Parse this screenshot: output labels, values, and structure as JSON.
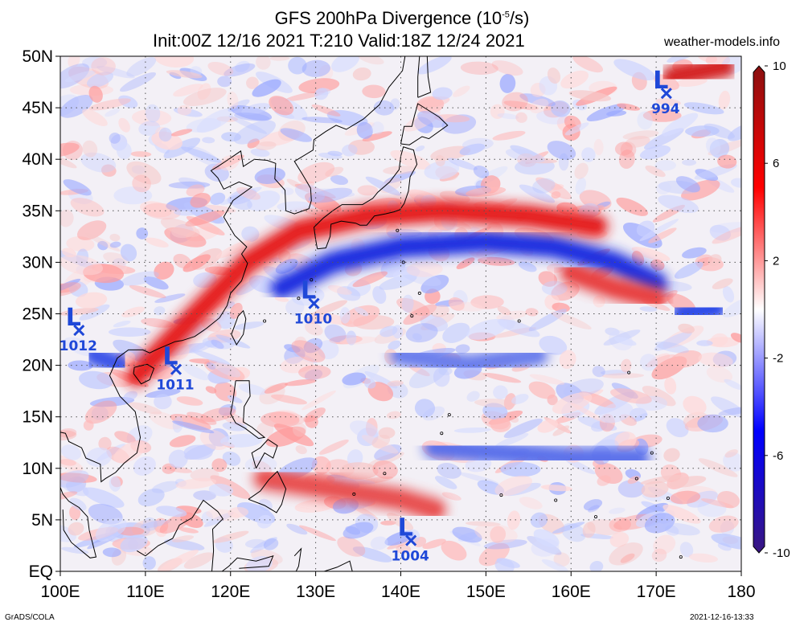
{
  "header": {
    "title_main": "GFS 200hPa Divergence (10",
    "title_exp": "-5",
    "title_unit": "/s)",
    "title_line2": "Init:00Z 12/16 2021 T:210 Valid:18Z 12/24 2021",
    "site": "weather-models.info"
  },
  "footer": {
    "software": "GrADS/COLA",
    "timestamp": "2021-12-16-13:33"
  },
  "map": {
    "lon_range": [
      100,
      180
    ],
    "lat_range": [
      0,
      50
    ],
    "lat_ticks": [
      {
        "v": 50,
        "label": "50N"
      },
      {
        "v": 45,
        "label": "45N"
      },
      {
        "v": 40,
        "label": "40N"
      },
      {
        "v": 35,
        "label": "35N"
      },
      {
        "v": 30,
        "label": "30N"
      },
      {
        "v": 25,
        "label": "25N"
      },
      {
        "v": 20,
        "label": "20N"
      },
      {
        "v": 15,
        "label": "15N"
      },
      {
        "v": 10,
        "label": "10N"
      },
      {
        "v": 5,
        "label": "5N"
      },
      {
        "v": 0,
        "label": "EQ"
      }
    ],
    "lon_ticks": [
      {
        "v": 100,
        "label": "100E"
      },
      {
        "v": 110,
        "label": "110E"
      },
      {
        "v": 120,
        "label": "120E"
      },
      {
        "v": 130,
        "label": "130E"
      },
      {
        "v": 140,
        "label": "140E"
      },
      {
        "v": 150,
        "label": "150E"
      },
      {
        "v": 160,
        "label": "160E"
      },
      {
        "v": 170,
        "label": "170E"
      },
      {
        "v": 180,
        "label": "180"
      }
    ]
  },
  "lows": [
    {
      "lon": 102.2,
      "lat": 23.4,
      "pressure": "1012"
    },
    {
      "lon": 113.6,
      "lat": 19.6,
      "pressure": "1011"
    },
    {
      "lon": 129.8,
      "lat": 26.0,
      "pressure": "1010"
    },
    {
      "lon": 141.2,
      "lat": 3.0,
      "pressure": "1004"
    },
    {
      "lon": 171.2,
      "lat": 46.4,
      "pressure": "994"
    }
  ],
  "low_symbol": "L",
  "colorbar": {
    "range": [
      -10,
      10
    ],
    "ticks": [
      {
        "v": 10,
        "label": "10"
      },
      {
        "v": 6,
        "label": "6"
      },
      {
        "v": 2,
        "label": "2"
      },
      {
        "v": -2,
        "label": "-2"
      },
      {
        "v": -6,
        "label": "-6"
      },
      {
        "v": -10,
        "label": "-10"
      }
    ],
    "colors": [
      "#8a1010",
      "#ff0000",
      "#ffffff",
      "#0000ff",
      "#3a1780"
    ]
  },
  "field_features": [
    {
      "kind": "convergence",
      "color": "#1f2fe0",
      "points": [
        [
          126,
          27.5
        ],
        [
          132,
          30
        ],
        [
          140,
          31.5
        ],
        [
          150,
          32
        ],
        [
          158,
          31.5
        ],
        [
          165,
          30
        ],
        [
          170,
          28
        ]
      ]
    },
    {
      "kind": "divergence",
      "color": "#e51a1a",
      "points": [
        [
          109,
          19
        ],
        [
          116,
          25
        ],
        [
          122,
          30
        ],
        [
          128,
          33
        ],
        [
          136,
          34.5
        ],
        [
          145,
          35
        ],
        [
          155,
          34.5
        ],
        [
          163,
          33.5
        ]
      ]
    },
    {
      "kind": "divergence",
      "color": "#e84040",
      "points": [
        [
          160,
          29
        ],
        [
          165,
          27.5
        ],
        [
          170,
          26.5
        ]
      ]
    },
    {
      "kind": "convergence",
      "color": "#3a52e8",
      "points": [
        [
          104,
          21
        ],
        [
          107,
          20
        ]
      ]
    },
    {
      "kind": "convergence",
      "color": "#2a48e8",
      "points": [
        [
          173,
          25
        ],
        [
          177,
          25.5
        ]
      ]
    },
    {
      "kind": "divergence",
      "color": "#d42020",
      "points": [
        [
          172,
          48
        ],
        [
          178,
          49
        ]
      ]
    },
    {
      "kind": "divergence",
      "color": "#e85050",
      "points": [
        [
          124,
          9
        ],
        [
          132,
          8
        ],
        [
          140,
          7
        ],
        [
          144,
          6
        ]
      ]
    },
    {
      "kind": "convergence",
      "color": "#5a70ea",
      "points": [
        [
          144,
          12
        ],
        [
          152,
          11.5
        ],
        [
          160,
          11
        ],
        [
          168,
          11
        ]
      ]
    },
    {
      "kind": "convergence",
      "color": "#6a7eec",
      "points": [
        [
          140,
          21
        ],
        [
          148,
          20
        ],
        [
          156,
          21
        ]
      ]
    }
  ]
}
